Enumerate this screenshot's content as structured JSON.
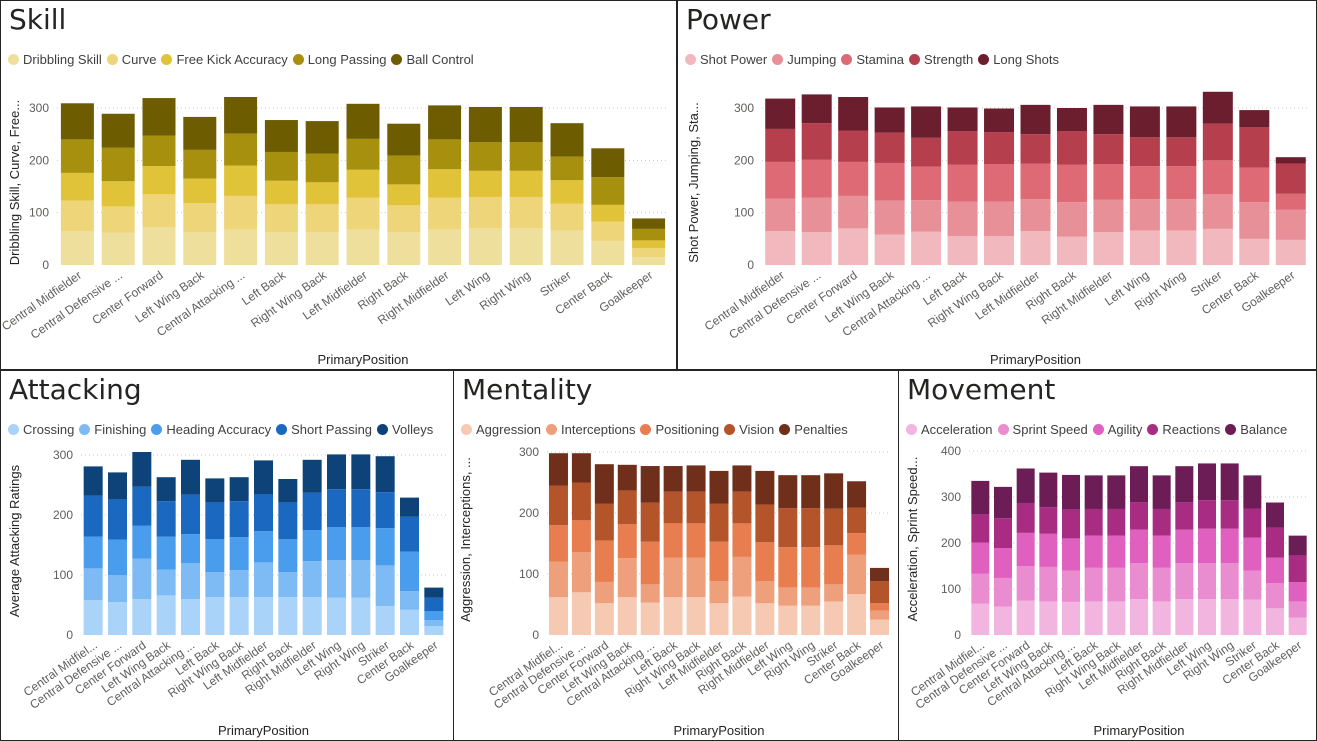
{
  "panels": [
    {
      "title": "Skill",
      "chart_data": {
        "type": "bar",
        "stacked": true,
        "title": "Skill",
        "xlabel": "PrimaryPosition",
        "ylabel": "Dribbling Skill, Curve, Free...",
        "ylim": [
          0,
          300
        ],
        "yticks": [
          0,
          100,
          200,
          300
        ],
        "grid": true,
        "legend_position": "top-left",
        "categories": [
          "Central Midfielder",
          "Central Defensive ...",
          "Center Forward",
          "Left Wing Back",
          "Central Attacking ...",
          "Left Back",
          "Right Wing Back",
          "Left Midfielder",
          "Right Back",
          "Right Midfielder",
          "Left Wing",
          "Right Wing",
          "Striker",
          "Center Back",
          "Goalkeeper"
        ],
        "series": [
          {
            "name": "Dribbling Skill",
            "color": "#efdf9d",
            "values": [
              65,
              62,
              72,
              63,
              68,
              63,
              63,
              68,
              63,
              68,
              70,
              70,
              66,
              46,
              15
            ]
          },
          {
            "name": "Curve",
            "color": "#eed579",
            "values": [
              58,
              50,
              63,
              55,
              64,
              53,
              53,
              61,
              51,
              61,
              60,
              60,
              51,
              37,
              17
            ]
          },
          {
            "name": "Free Kick Accuracy",
            "color": "#e1c339",
            "values": [
              53,
              48,
              54,
              47,
              58,
              45,
              42,
              53,
              40,
              54,
              50,
              50,
              45,
              32,
              15
            ]
          },
          {
            "name": "Long Passing",
            "color": "#a8900f",
            "values": [
              64,
              64,
              58,
              55,
              61,
              55,
              55,
              59,
              55,
              57,
              55,
              55,
              45,
              53,
              22
            ]
          },
          {
            "name": "Ball Control",
            "color": "#6e5c00",
            "values": [
              69,
              65,
              72,
              63,
              70,
              61,
              62,
              67,
              61,
              65,
              67,
              67,
              64,
              55,
              20
            ]
          }
        ]
      }
    },
    {
      "title": "Power",
      "chart_data": {
        "type": "bar",
        "stacked": true,
        "title": "Power",
        "xlabel": "PrimaryPosition",
        "ylabel": "Shot Power, Jumping, Sta...",
        "ylim": [
          0,
          300
        ],
        "yticks": [
          0,
          100,
          200,
          300
        ],
        "grid": true,
        "legend_position": "top-left",
        "categories": [
          "Central Midfielder",
          "Central Defensive ...",
          "Center Forward",
          "Left Wing Back",
          "Central Attacking ...",
          "Left Back",
          "Right Wing Back",
          "Left Midfielder",
          "Right Back",
          "Right Midfielder",
          "Left Wing",
          "Right Wing",
          "Striker",
          "Center Back",
          "Goalkeeper"
        ],
        "series": [
          {
            "name": "Shot Power",
            "color": "#f1b8bd",
            "values": [
              65,
              63,
              70,
              58,
              64,
              55,
              55,
              65,
              54,
              63,
              66,
              66,
              69,
              50,
              48
            ]
          },
          {
            "name": "Jumping",
            "color": "#e79097",
            "values": [
              62,
              66,
              62,
              65,
              60,
              66,
              66,
              61,
              66,
              62,
              60,
              60,
              66,
              70,
              58
            ]
          },
          {
            "name": "Stamina",
            "color": "#dd6a75",
            "values": [
              70,
              72,
              65,
              72,
              64,
              71,
              72,
              68,
              72,
              68,
              63,
              63,
              65,
              66,
              30
            ]
          },
          {
            "name": "Strength",
            "color": "#b53f4d",
            "values": [
              63,
              70,
              60,
              58,
              55,
              64,
              61,
              56,
              64,
              57,
              55,
              55,
              70,
              77,
              58
            ]
          },
          {
            "name": "Long Shots",
            "color": "#6b1f2e",
            "values": [
              58,
              55,
              64,
              48,
              60,
              45,
              45,
              56,
              44,
              56,
              59,
              59,
              61,
              33,
              12
            ]
          }
        ]
      }
    },
    {
      "title": "Attacking",
      "chart_data": {
        "type": "bar",
        "stacked": true,
        "title": "Attacking",
        "xlabel": "PrimaryPosition",
        "ylabel": "Average Attacking Ratings",
        "ylim": [
          0,
          300
        ],
        "yticks": [
          0,
          100,
          200,
          300
        ],
        "grid": true,
        "legend_position": "top-left",
        "categories": [
          "Central Midfiel...",
          "Central Defensive ...",
          "Center Forward",
          "Left Wing Back",
          "Central Attacking ...",
          "Left Back",
          "Right Wing Back",
          "Left Midfielder",
          "Right Back",
          "Right Midfielder",
          "Left Wing",
          "Right Wing",
          "Striker",
          "Center Back",
          "Goalkeeper"
        ],
        "series": [
          {
            "name": "Crossing",
            "color": "#a9d3f8",
            "values": [
              58,
              55,
              60,
              66,
              60,
              63,
              63,
              63,
              63,
              63,
              62,
              62,
              48,
              42,
              15
            ]
          },
          {
            "name": "Finishing",
            "color": "#7ebbf4",
            "values": [
              53,
              45,
              67,
              43,
              60,
              42,
              45,
              58,
              42,
              60,
              63,
              63,
              68,
              31,
              10
            ]
          },
          {
            "name": "Heading Accuracy",
            "color": "#4a9ded",
            "values": [
              53,
              59,
              55,
              55,
              48,
              55,
              55,
              52,
              55,
              52,
              55,
              55,
              62,
              66,
              15
            ]
          },
          {
            "name": "Short Passing",
            "color": "#1a68c0",
            "values": [
              68,
              67,
              65,
              59,
              66,
              61,
              60,
              62,
              61,
              62,
              63,
              63,
              60,
              58,
              22
            ]
          },
          {
            "name": "Volleys",
            "color": "#0d4379",
            "values": [
              49,
              45,
              58,
              40,
              58,
              40,
              40,
              56,
              39,
              55,
              58,
              58,
              60,
              32,
              17
            ]
          }
        ]
      }
    },
    {
      "title": "Mentality",
      "chart_data": {
        "type": "bar",
        "stacked": true,
        "title": "Mentality",
        "xlabel": "PrimaryPosition",
        "ylabel": "Aggression, Interceptions, ...",
        "ylim": [
          0,
          300
        ],
        "yticks": [
          0,
          100,
          200,
          300
        ],
        "grid": true,
        "legend_position": "top-left",
        "categories": [
          "Central Midfiel...",
          "Central Defensive ...",
          "Center Forward",
          "Left Wing Back",
          "Central Attacking ...",
          "Left Back",
          "Right Wing Back",
          "Left Midfielder",
          "Right Back",
          "Right Midfielder",
          "Left Wing",
          "Right Wing",
          "Striker",
          "Center Back",
          "Goalkeeper"
        ],
        "series": [
          {
            "name": "Aggression",
            "color": "#f5c9b2",
            "values": [
              62,
              70,
              52,
              62,
              53,
              62,
              62,
              52,
              63,
              52,
              48,
              48,
              55,
              67,
              25
            ]
          },
          {
            "name": "Interceptions",
            "color": "#ee9f7c",
            "values": [
              58,
              66,
              35,
              64,
              30,
              65,
              65,
              36,
              65,
              36,
              30,
              30,
              28,
              65,
              15
            ]
          },
          {
            "name": "Positioning",
            "color": "#e87d4f",
            "values": [
              60,
              52,
              68,
              56,
              70,
              56,
              56,
              65,
              55,
              64,
              66,
              66,
              64,
              35,
              12
            ]
          },
          {
            "name": "Vision",
            "color": "#b3542a",
            "values": [
              65,
              62,
              60,
              55,
              64,
              52,
              52,
              62,
              52,
              62,
              64,
              64,
              60,
              42,
              36
            ]
          },
          {
            "name": "Penalties",
            "color": "#6f2f1a",
            "values": [
              53,
              48,
              65,
              42,
              60,
              42,
              43,
              54,
              43,
              55,
              54,
              54,
              58,
              43,
              22
            ]
          }
        ]
      }
    },
    {
      "title": "Movement",
      "chart_data": {
        "type": "bar",
        "stacked": true,
        "title": "Movement",
        "xlabel": "PrimaryPosition",
        "ylabel": "Acceleration, Sprint Speed...",
        "ylim": [
          0,
          400
        ],
        "yticks": [
          0,
          100,
          200,
          300,
          400
        ],
        "grid": true,
        "legend_position": "top-left",
        "categories": [
          "Central Midfiel...",
          "Central Defensive ...",
          "Center Forward",
          "Left Wing Back",
          "Central Attacking ...",
          "Left Back",
          "Right Wing Back",
          "Left Midfielder",
          "Right Back",
          "Right Midfielder",
          "Left Wing",
          "Right Wing",
          "Striker",
          "Center Back",
          "Goalkeeper"
        ],
        "series": [
          {
            "name": "Acceleration",
            "color": "#f2b5df",
            "values": [
              68,
              62,
              75,
              73,
              72,
              73,
              73,
              78,
              73,
              78,
              78,
              78,
              77,
              58,
              38
            ]
          },
          {
            "name": "Sprint Speed",
            "color": "#ea8cd0",
            "values": [
              65,
              62,
              75,
              75,
              68,
              73,
              73,
              78,
              73,
              78,
              78,
              78,
              63,
              55,
              35
            ]
          },
          {
            "name": "Agility",
            "color": "#e060bf",
            "values": [
              68,
              65,
              72,
              72,
              70,
              70,
              70,
              73,
              70,
              73,
              75,
              75,
              72,
              55,
              42
            ]
          },
          {
            "name": "Reactions",
            "color": "#a82d82",
            "values": [
              62,
              65,
              65,
              58,
              63,
              58,
              58,
              60,
              58,
              60,
              62,
              62,
              63,
              65,
              58
            ]
          },
          {
            "name": "Balance",
            "color": "#6c1d56",
            "values": [
              72,
              68,
              75,
              75,
              75,
              73,
              73,
              78,
              73,
              78,
              80,
              80,
              72,
              55,
              43
            ]
          }
        ]
      }
    }
  ]
}
